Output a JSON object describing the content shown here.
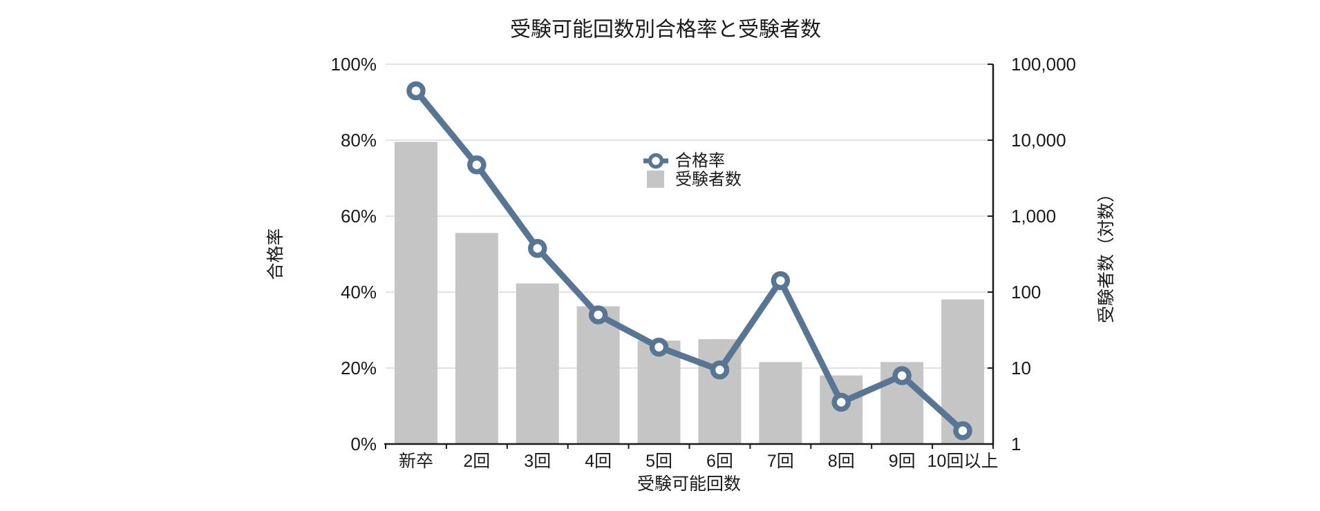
{
  "title": "受験可能回数別合格率と受験者数",
  "legend": {
    "items": [
      {
        "label": "合格率",
        "marker": "line-ring-marker",
        "color": "#587693"
      },
      {
        "label": "受験者数",
        "marker": "bar-swatch",
        "color": "#C5C5C5"
      }
    ]
  },
  "colors": {
    "line": "#587693",
    "bar": "#C5C5C5",
    "gridline": "#D9D9D9",
    "axis": "#1A1A1A",
    "text": "#1A1A1A",
    "background": "#FFFFFF"
  },
  "chart_data": {
    "type": "bar+line combo",
    "title": "受験可能回数別合格率と受験者数",
    "categories": [
      "新卒",
      "2回",
      "3回",
      "4回",
      "5回",
      "6回",
      "7回",
      "8回",
      "9回",
      "10回以上"
    ],
    "series": [
      {
        "name": "合格率",
        "type": "line",
        "axis": "left",
        "unit": "%",
        "values": [
          93,
          73.5,
          51.5,
          34,
          25.5,
          19.5,
          43,
          11,
          18,
          3.5
        ]
      },
      {
        "name": "受験者数",
        "type": "bar",
        "axis": "right",
        "scale": "log10",
        "values": [
          9500,
          600,
          130,
          65,
          23,
          24,
          12,
          8,
          12,
          80
        ]
      }
    ],
    "x_axis": {
      "label": "受験可能回数"
    },
    "left_axis": {
      "label": "合格率",
      "range": [
        0,
        100
      ],
      "unit": "%",
      "ticks": [
        "0%",
        "20%",
        "40%",
        "60%",
        "80%",
        "100%"
      ]
    },
    "right_axis": {
      "label": "受験者数（対数）",
      "range": [
        1,
        100000
      ],
      "scale": "log",
      "ticks": [
        "1",
        "10",
        "100",
        "1,000",
        "10,000",
        "100,000"
      ]
    },
    "grid": true,
    "legend_position": "inside-center"
  }
}
